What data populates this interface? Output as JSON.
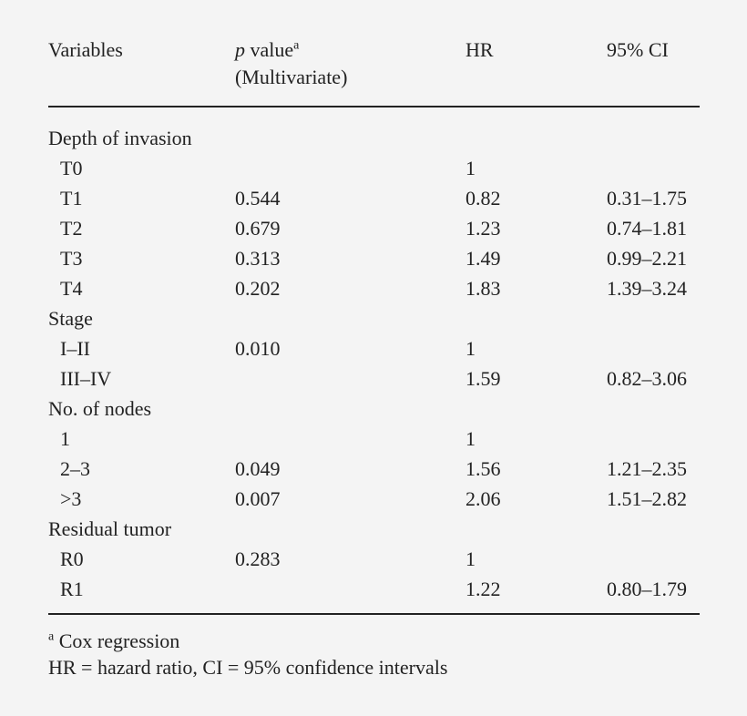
{
  "header": {
    "col1": "Variables",
    "col2_italic": "p",
    "col2_text": " value",
    "col2_sup": "a",
    "col2_line2": "(Multivariate)",
    "col3": "HR",
    "col4": "95% CI"
  },
  "rows": [
    {
      "type": "group",
      "label": "Depth of invasion",
      "p": "",
      "hr": "",
      "ci": ""
    },
    {
      "type": "sub",
      "label": "T0",
      "p": "",
      "hr": "1",
      "ci": ""
    },
    {
      "type": "sub",
      "label": "T1",
      "p": "0.544",
      "hr": "0.82",
      "ci": "0.31–1.75"
    },
    {
      "type": "sub",
      "label": "T2",
      "p": "0.679",
      "hr": "1.23",
      "ci": "0.74–1.81"
    },
    {
      "type": "sub",
      "label": "T3",
      "p": "0.313",
      "hr": "1.49",
      "ci": "0.99–2.21"
    },
    {
      "type": "sub",
      "label": "T4",
      "p": "0.202",
      "hr": "1.83",
      "ci": "1.39–3.24"
    },
    {
      "type": "group",
      "label": "Stage",
      "p": "",
      "hr": "",
      "ci": ""
    },
    {
      "type": "sub",
      "label": "I–II",
      "p": "0.010",
      "hr": "1",
      "ci": ""
    },
    {
      "type": "sub",
      "label": "III–IV",
      "p": "",
      "hr": "1.59",
      "ci": "0.82–3.06"
    },
    {
      "type": "group",
      "label": "No. of nodes",
      "p": "",
      "hr": "",
      "ci": ""
    },
    {
      "type": "sub",
      "label": "1",
      "p": "",
      "hr": "1",
      "ci": ""
    },
    {
      "type": "sub",
      "label": "2–3",
      "p": "0.049",
      "hr": "1.56",
      "ci": "1.21–2.35"
    },
    {
      "type": "sub",
      "label": ">3",
      "p": "0.007",
      "hr": "2.06",
      "ci": "1.51–2.82"
    },
    {
      "type": "group",
      "label": "Residual tumor",
      "p": "",
      "hr": "",
      "ci": ""
    },
    {
      "type": "sub",
      "label": "R0",
      "p": "0.283",
      "hr": "1",
      "ci": ""
    },
    {
      "type": "sub",
      "label": "R1",
      "p": "",
      "hr": "1.22",
      "ci": "0.80–1.79"
    }
  ],
  "footnotes": {
    "sup": "a",
    "note1": " Cox regression",
    "note2": "HR = hazard ratio, CI = 95% confidence intervals"
  }
}
